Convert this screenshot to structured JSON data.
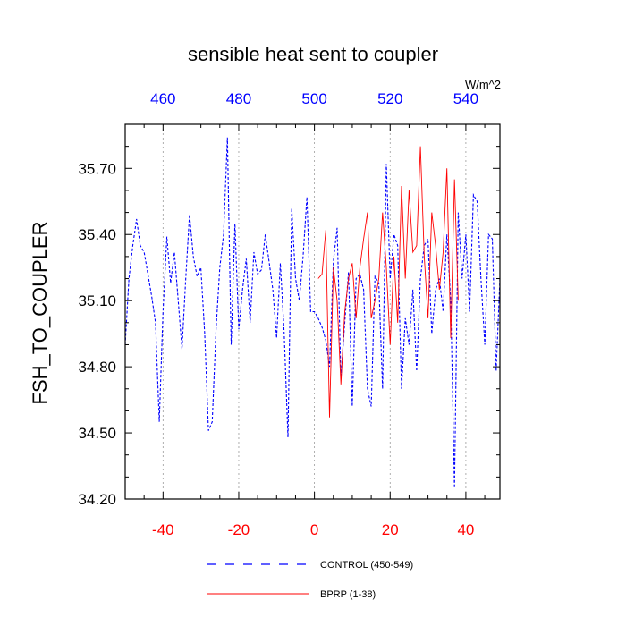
{
  "chart_data": {
    "type": "line",
    "title": "sensible heat sent to coupler",
    "units": "W/m^2",
    "ylabel": "FSH_TO_COUPLER",
    "xlabel": "",
    "ylim": [
      34.2,
      35.9
    ],
    "yticks": [
      "35.70",
      "35.40",
      "35.10",
      "34.80",
      "34.50",
      "34.20"
    ],
    "bottom_axis": {
      "lim": [
        -50,
        49
      ],
      "ticks": [
        "-40",
        "-20",
        "0",
        "20",
        "40"
      ],
      "color": "#ff0000"
    },
    "top_axis": {
      "lim": [
        450,
        549
      ],
      "ticks": [
        "460",
        "480",
        "500",
        "520",
        "540"
      ],
      "color": "#0000ff"
    },
    "grid": "vertical dotted at major bottom ticks",
    "legend_position": "bottom",
    "series": [
      {
        "name": "CONTROL (450-549)",
        "color": "#0000ff",
        "dash": "dashed",
        "x": [
          -50,
          -49,
          -48,
          -47,
          -46,
          -45,
          -44,
          -43,
          -42,
          -41,
          -40,
          -39,
          -38,
          -37,
          -36,
          -35,
          -34,
          -33,
          -32,
          -31,
          -30,
          -29,
          -28,
          -27,
          -26,
          -25,
          -24,
          -23,
          -22,
          -21,
          -20,
          -19,
          -18,
          -17,
          -16,
          -15,
          -14,
          -13,
          -12,
          -11,
          -10,
          -9,
          -8,
          -7,
          -6,
          -5,
          -4,
          -3,
          -2,
          -1,
          0,
          1,
          2,
          3,
          4,
          5,
          6,
          7,
          8,
          9,
          10,
          11,
          12,
          13,
          14,
          15,
          16,
          17,
          18,
          19,
          20,
          21,
          22,
          23,
          24,
          25,
          26,
          27,
          28,
          29,
          30,
          31,
          32,
          33,
          34,
          35,
          36,
          37,
          38,
          39,
          40,
          41,
          42,
          43,
          44,
          45,
          46,
          47,
          48,
          49
        ],
        "values": [
          34.9,
          35.2,
          35.35,
          35.47,
          35.35,
          35.32,
          35.22,
          35.12,
          35.0,
          34.55,
          35.05,
          35.39,
          35.18,
          35.32,
          35.1,
          34.88,
          35.2,
          35.49,
          35.3,
          35.21,
          35.25,
          34.95,
          34.51,
          34.55,
          34.97,
          35.25,
          35.4,
          35.84,
          34.9,
          35.45,
          34.97,
          35.15,
          35.29,
          35.0,
          35.32,
          35.22,
          35.24,
          35.4,
          35.28,
          35.15,
          34.93,
          35.27,
          34.95,
          34.48,
          35.52,
          35.2,
          35.1,
          35.3,
          35.57,
          35.05,
          35.05,
          35.02,
          34.98,
          34.92,
          34.8,
          35.28,
          35.43,
          34.75,
          35.0,
          35.23,
          34.62,
          35.2,
          35.22,
          35.15,
          34.7,
          34.62,
          35.21,
          35.18,
          34.7,
          35.72,
          35.2,
          35.4,
          35.35,
          34.7,
          35.02,
          34.9,
          35.15,
          34.78,
          35.2,
          35.35,
          35.38,
          34.95,
          35.15,
          35.2,
          35.05,
          35.4,
          35.1,
          34.25,
          35.5,
          35.2,
          35.4,
          35.05,
          35.58,
          35.55,
          35.2,
          34.9,
          35.4,
          35.38,
          34.78,
          35.2
        ]
      },
      {
        "name": "BPRP (1-38)",
        "color": "#ff0000",
        "dash": "solid",
        "x": [
          1,
          2,
          3,
          4,
          5,
          6,
          7,
          8,
          9,
          10,
          11,
          12,
          13,
          14,
          15,
          16,
          17,
          18,
          19,
          20,
          21,
          22,
          23,
          24,
          25,
          26,
          27,
          28,
          29,
          30,
          31,
          32,
          33,
          34,
          35,
          36,
          37,
          38
        ],
        "values": [
          35.2,
          35.22,
          35.42,
          34.57,
          35.25,
          35.1,
          34.72,
          35.05,
          35.2,
          35.27,
          35.02,
          35.25,
          35.38,
          35.5,
          35.02,
          35.1,
          35.2,
          35.5,
          35.25,
          34.9,
          35.3,
          35.0,
          35.62,
          35.2,
          35.6,
          35.32,
          35.35,
          35.8,
          35.3,
          35.02,
          35.5,
          35.35,
          35.15,
          35.32,
          35.7,
          34.93,
          35.65,
          35.1
        ]
      }
    ]
  }
}
